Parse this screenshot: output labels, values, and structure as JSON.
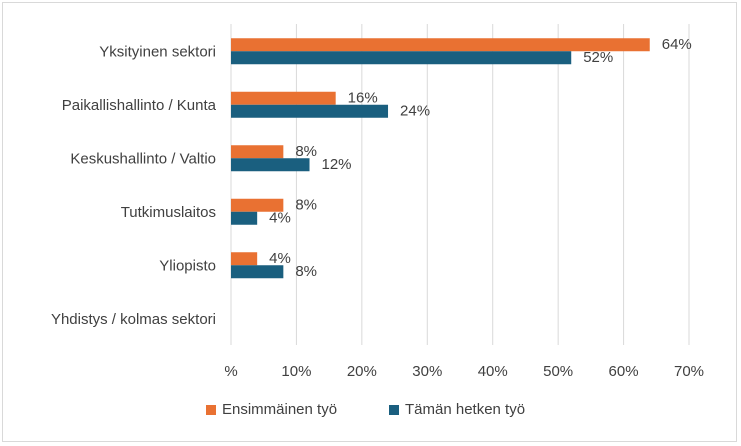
{
  "chart_data": {
    "type": "bar",
    "orientation": "horizontal",
    "categories": [
      "Yksityinen sektori",
      "Paikallishallinto / Kunta",
      "Keskushallinto / Valtio",
      "Tutkimuslaitos",
      "Yliopisto",
      "Yhdistys / kolmas sektori"
    ],
    "series": [
      {
        "name": "Ensimmäinen työ",
        "color": "#e97132",
        "values": [
          64,
          16,
          8,
          8,
          4,
          null
        ],
        "labels": [
          "64%",
          "16%",
          "8%",
          "8%",
          "4%",
          ""
        ]
      },
      {
        "name": "Tämän hetken työ",
        "color": "#1a5f7f",
        "values": [
          52,
          24,
          12,
          4,
          8,
          null
        ],
        "labels": [
          "52%",
          "24%",
          "12%",
          "4%",
          "8%",
          ""
        ]
      }
    ],
    "xlim": [
      0,
      70
    ],
    "xticks": [
      0,
      10,
      20,
      30,
      40,
      50,
      60,
      70
    ],
    "xtick_labels": [
      "%",
      "10%",
      "20%",
      "30%",
      "40%",
      "50%",
      "60%",
      "70%"
    ],
    "grid": true,
    "legend": "bottom"
  }
}
